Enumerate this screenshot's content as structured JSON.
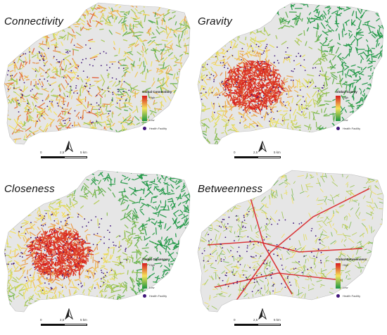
{
  "panels": [
    {
      "title": "Connectivity",
      "legend_title": "Global Connectivity",
      "high": "High",
      "low": "Low",
      "facility": "Health Facility",
      "style": "mixed"
    },
    {
      "title": "Gravity",
      "legend_title": "Global Gravity",
      "high": "High",
      "low": "Low",
      "facility": "Health Facility",
      "style": "radial"
    },
    {
      "title": "Closeness",
      "legend_title": "Global Closeness",
      "high": "High",
      "low": "Low",
      "facility": "Health Facility",
      "style": "radial"
    },
    {
      "title": "Betweenness",
      "legend_title": "Global Betweenness",
      "high": "High",
      "low": "Low",
      "facility": "Health Facility",
      "style": "lines"
    }
  ],
  "scalebar": {
    "ticks": [
      "0",
      "2,5",
      "5 km"
    ]
  },
  "colors": {
    "high": "#d7191c",
    "mid": "#f5e35a",
    "low": "#1a9641",
    "facility": "#3f157a",
    "background": "#e6e6e6"
  }
}
